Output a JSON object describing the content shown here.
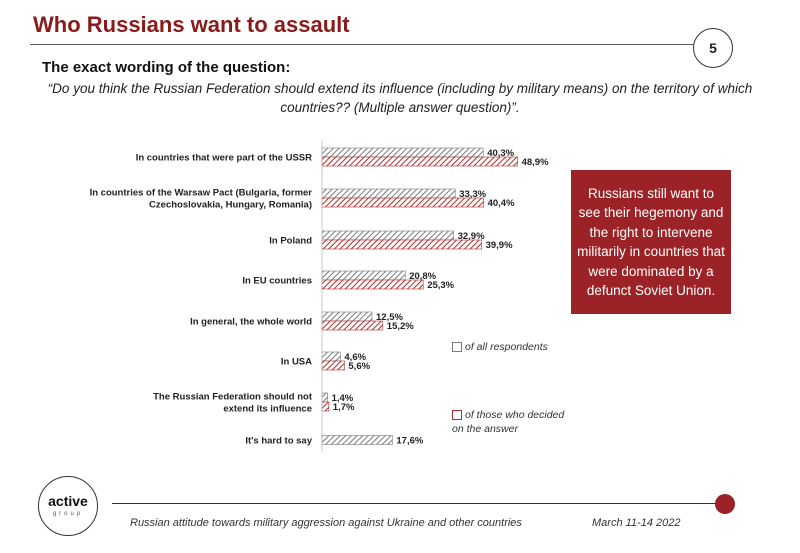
{
  "header": {
    "title": "Who Russians want to assault",
    "page_number": "5"
  },
  "subtitle": "The exact wording of the question:",
  "question": "“Do you think the Russian Federation should extend its influence (including by military means) on the territory of which countries?? (Multiple answer question)”.",
  "callout": "Russians still want to see their hegemony and the right to intervene militarily in countries that were dominated by a defunct Soviet Union.",
  "legend": {
    "all_respondents": "of all respondents",
    "decided": "of those who decided on the answer"
  },
  "footer": {
    "logo_main": "active",
    "logo_sub": "group",
    "caption": "Russian attitude towards military aggression against Ukraine and other countries",
    "date": "March 11-14 2022"
  },
  "colors": {
    "accent": "#9b2226",
    "all_bar": "#7a7a7a",
    "decided_bar": "#b52a2a"
  },
  "chart_data": {
    "type": "bar",
    "orientation": "horizontal",
    "categories": [
      [
        "In countries that were part of the USSR"
      ],
      [
        "In countries of the Warsaw Pact (Bulgaria, former",
        "Czechoslovakia, Hungary, Romania)"
      ],
      [
        "In Poland"
      ],
      [
        "In EU countries"
      ],
      [
        "In general, the whole world"
      ],
      [
        "In USA"
      ],
      [
        "The Russian Federation should not",
        "extend its influence"
      ],
      [
        "It's hard to say"
      ]
    ],
    "series": [
      {
        "name": "of all respondents",
        "values": [
          40.3,
          33.3,
          32.9,
          20.8,
          12.5,
          4.6,
          1.4,
          17.6
        ],
        "labels": [
          "40,3%",
          "33,3%",
          "32,9%",
          "20,8%",
          "12,5%",
          "4,6%",
          "1,4%",
          "17,6%"
        ]
      },
      {
        "name": "of those who decided on the answer",
        "values": [
          48.9,
          40.4,
          39.9,
          25.3,
          15.2,
          5.6,
          1.7,
          null
        ],
        "labels": [
          "48,9%",
          "40,4%",
          "39,9%",
          "25,3%",
          "15,2%",
          "5,6%",
          "1,7%",
          ""
        ]
      }
    ],
    "xlim": [
      0,
      100
    ],
    "grid": false
  }
}
